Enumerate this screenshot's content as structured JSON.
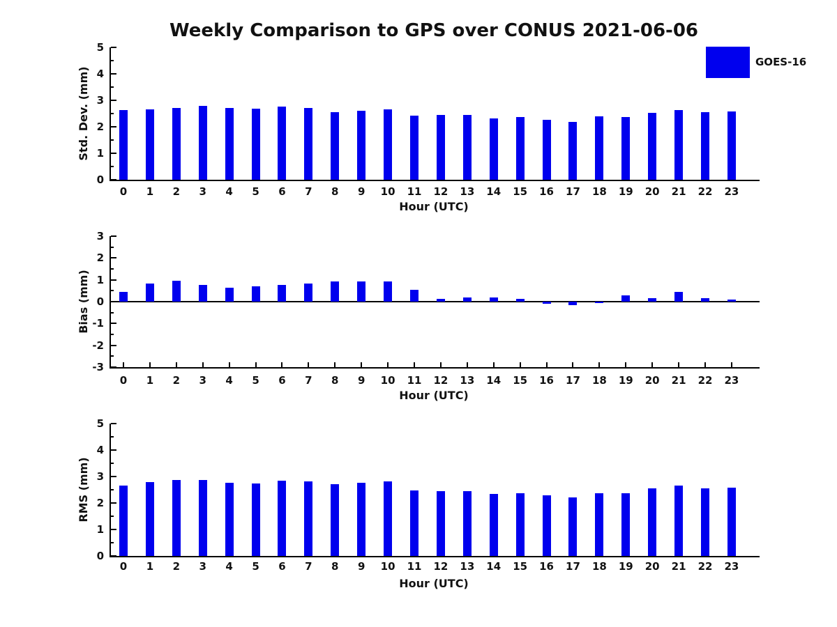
{
  "title": "Weekly Comparison to GPS over CONUS 2021-06-06",
  "legend": {
    "label": "GOES-16",
    "swatch_color": "#0000EE",
    "position": "upper right outside"
  },
  "colors": {
    "bar": "#0000EE",
    "axis": "#000000",
    "text": "#111111"
  },
  "chart_data": [
    {
      "type": "bar",
      "name": "std-dev",
      "title": "",
      "xlabel": "Hour (UTC)",
      "ylabel": "Std. Dev. (mm)",
      "ylim": [
        0,
        5
      ],
      "yticks": [
        0,
        1,
        2,
        3,
        4,
        5
      ],
      "minor_tick_step": 0.5,
      "grid": false,
      "series_name": "GOES-16",
      "categories": [
        "0",
        "1",
        "2",
        "3",
        "4",
        "5",
        "6",
        "7",
        "8",
        "9",
        "10",
        "11",
        "12",
        "13",
        "14",
        "15",
        "16",
        "17",
        "18",
        "19",
        "20",
        "21",
        "22",
        "23"
      ],
      "values": [
        2.62,
        2.66,
        2.71,
        2.79,
        2.71,
        2.68,
        2.77,
        2.71,
        2.55,
        2.6,
        2.66,
        2.42,
        2.45,
        2.45,
        2.31,
        2.36,
        2.26,
        2.19,
        2.39,
        2.36,
        2.52,
        2.63,
        2.55,
        2.58
      ]
    },
    {
      "type": "bar",
      "name": "bias",
      "title": "",
      "xlabel": "Hour (UTC)",
      "ylabel": "Bias (mm)",
      "ylim": [
        -3,
        3
      ],
      "yticks": [
        -3,
        -2,
        -1,
        0,
        1,
        2,
        3
      ],
      "minor_tick_step": 0.5,
      "grid": false,
      "series_name": "GOES-16",
      "categories": [
        "0",
        "1",
        "2",
        "3",
        "4",
        "5",
        "6",
        "7",
        "8",
        "9",
        "10",
        "11",
        "12",
        "13",
        "14",
        "15",
        "16",
        "17",
        "18",
        "19",
        "20",
        "21",
        "22",
        "23"
      ],
      "values": [
        0.46,
        0.83,
        0.97,
        0.76,
        0.63,
        0.69,
        0.76,
        0.83,
        0.94,
        0.94,
        0.94,
        0.54,
        0.13,
        0.18,
        0.2,
        0.12,
        -0.1,
        -0.17,
        -0.05,
        0.28,
        0.16,
        0.44,
        0.17,
        0.11
      ]
    },
    {
      "type": "bar",
      "name": "rms",
      "title": "",
      "xlabel": "Hour (UTC)",
      "ylabel": "RMS (mm)",
      "ylim": [
        0,
        5
      ],
      "yticks": [
        0,
        1,
        2,
        3,
        4,
        5
      ],
      "minor_tick_step": 0.5,
      "grid": false,
      "series_name": "GOES-16",
      "categories": [
        "0",
        "1",
        "2",
        "3",
        "4",
        "5",
        "6",
        "7",
        "8",
        "9",
        "10",
        "11",
        "12",
        "13",
        "14",
        "15",
        "16",
        "17",
        "18",
        "19",
        "20",
        "21",
        "22",
        "23"
      ],
      "values": [
        2.66,
        2.78,
        2.87,
        2.88,
        2.77,
        2.74,
        2.85,
        2.82,
        2.71,
        2.77,
        2.82,
        2.48,
        2.45,
        2.46,
        2.34,
        2.37,
        2.28,
        2.21,
        2.38,
        2.38,
        2.54,
        2.66,
        2.56,
        2.57
      ]
    }
  ]
}
